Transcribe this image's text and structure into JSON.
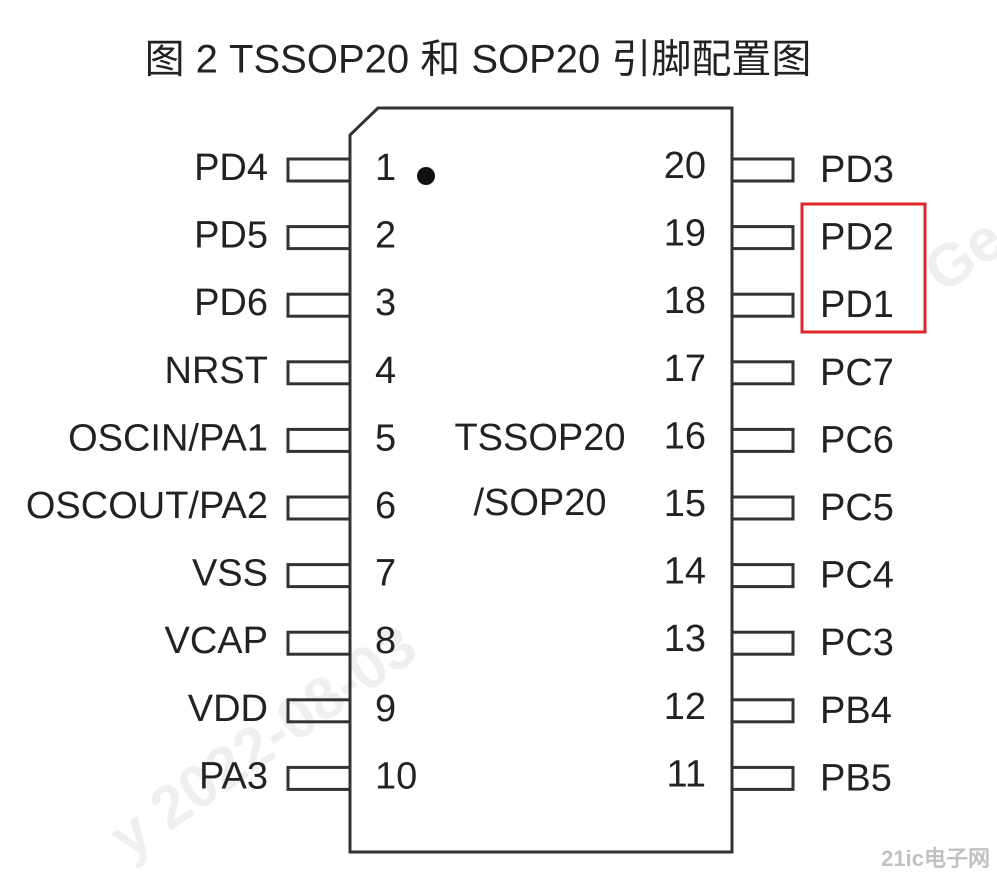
{
  "title": "图 2 TSSOP20 和 SOP20 引脚配置图",
  "package": {
    "line1": "TSSOP20",
    "line2": "/SOP20"
  },
  "left_pins": [
    {
      "number": "1",
      "label": "PD4"
    },
    {
      "number": "2",
      "label": "PD5"
    },
    {
      "number": "3",
      "label": "PD6"
    },
    {
      "number": "4",
      "label": "NRST"
    },
    {
      "number": "5",
      "label": "OSCIN/PA1"
    },
    {
      "number": "6",
      "label": "OSCOUT/PA2"
    },
    {
      "number": "7",
      "label": "VSS"
    },
    {
      "number": "8",
      "label": "VCAP"
    },
    {
      "number": "9",
      "label": "VDD"
    },
    {
      "number": "10",
      "label": "PA3"
    }
  ],
  "right_pins": [
    {
      "number": "20",
      "label": "PD3"
    },
    {
      "number": "19",
      "label": "PD2"
    },
    {
      "number": "18",
      "label": "PD1"
    },
    {
      "number": "17",
      "label": "PC7"
    },
    {
      "number": "16",
      "label": "PC6"
    },
    {
      "number": "15",
      "label": "PC5"
    },
    {
      "number": "14",
      "label": "PC4"
    },
    {
      "number": "13",
      "label": "PC3"
    },
    {
      "number": "12",
      "label": "PB4"
    },
    {
      "number": "11",
      "label": "PB5"
    }
  ],
  "watermark": {
    "date": "y 2022-08-03",
    "corner": "Ge",
    "logo": "21ic电子网"
  }
}
